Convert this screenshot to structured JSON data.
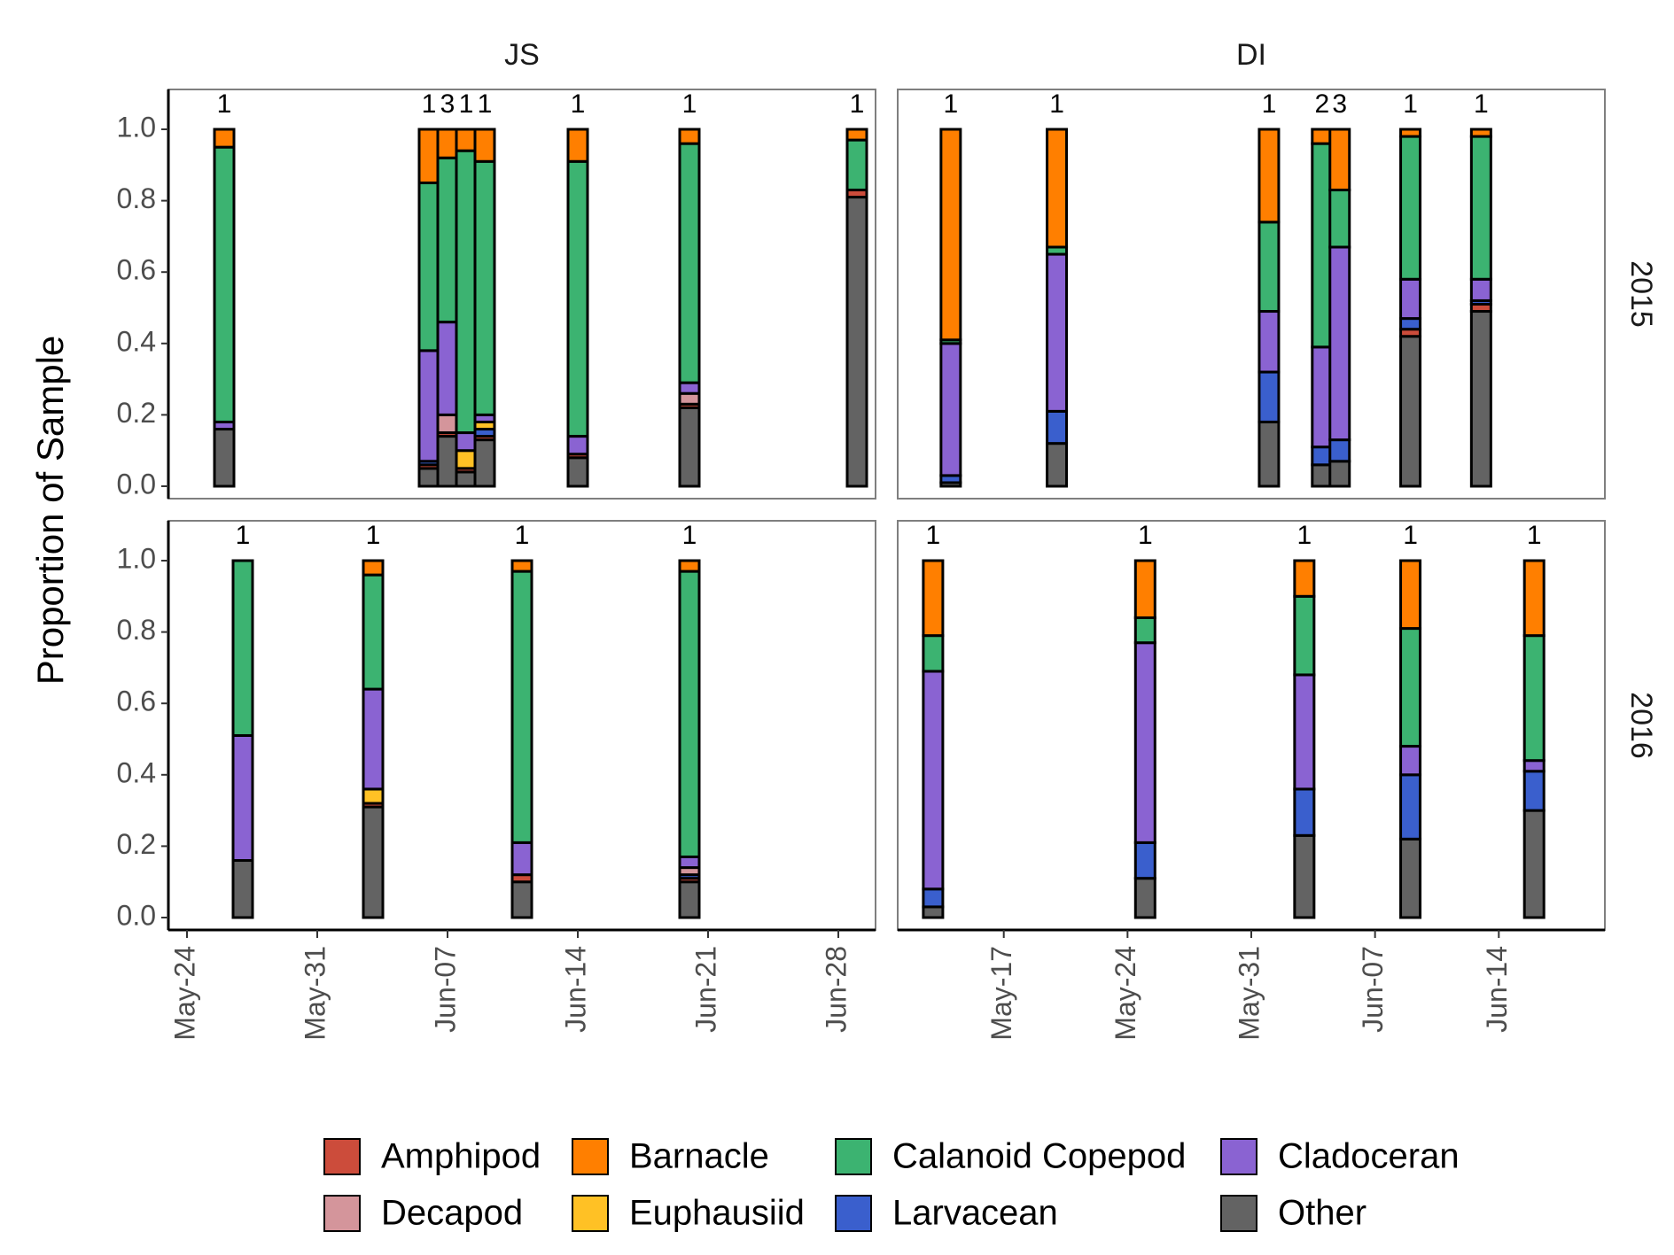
{
  "chart_data": {
    "type": "bar",
    "stacked": true,
    "facet_columns": [
      "JS",
      "DI"
    ],
    "facet_rows": [
      "2015",
      "2016"
    ],
    "ylabel": "Proportion of Sample",
    "ylim": [
      0,
      1.08
    ],
    "yticks": [
      "0.0",
      "0.2",
      "0.4",
      "0.6",
      "0.8",
      "1.0"
    ],
    "x_axis": {
      "JS": {
        "range": [
          "2015-05-23",
          "2015-06-30"
        ],
        "ticks": [
          {
            "label": "May-24",
            "date": "2015-05-24"
          },
          {
            "label": "May-31",
            "date": "2015-05-31"
          },
          {
            "label": "Jun-07",
            "date": "2015-06-07"
          },
          {
            "label": "Jun-14",
            "date": "2015-06-14"
          },
          {
            "label": "Jun-21",
            "date": "2015-06-21"
          },
          {
            "label": "Jun-28",
            "date": "2015-06-28"
          }
        ]
      },
      "DI": {
        "range": [
          "2015-05-11",
          "2015-06-20"
        ],
        "ticks": [
          {
            "label": "May-17",
            "date": "2015-05-17"
          },
          {
            "label": "May-24",
            "date": "2015-05-24"
          },
          {
            "label": "May-31",
            "date": "2015-05-31"
          },
          {
            "label": "Jun-07",
            "date": "2015-06-07"
          },
          {
            "label": "Jun-14",
            "date": "2015-06-14"
          }
        ]
      }
    },
    "categories": [
      "Amphipod",
      "Barnacle",
      "Calanoid Copepod",
      "Cladoceran",
      "Decapod",
      "Euphausiid",
      "Larvacean",
      "Other"
    ],
    "colors": {
      "Amphipod": "#cc4c3b",
      "Barnacle": "#ff7f00",
      "Calanoid Copepod": "#3cb371",
      "Cladoceran": "#8a63d2",
      "Decapod": "#d4959b",
      "Euphausiid": "#ffc125",
      "Larvacean": "#3a5fcd",
      "Other": "#636363"
    },
    "stack_order": [
      "Other",
      "Amphipod",
      "Larvacean",
      "Decapod",
      "Euphausiid",
      "Cladoceran",
      "Calanoid Copepod",
      "Barnacle"
    ],
    "panels": [
      {
        "site": "JS",
        "year": "2015",
        "bars": [
          {
            "date": "2015-05-26",
            "label": "1",
            "values": {
              "Other": 0.16,
              "Cladoceran": 0.02,
              "Calanoid Copepod": 0.77,
              "Barnacle": 0.05
            }
          },
          {
            "date": "2015-06-06",
            "label": "1",
            "values": {
              "Other": 0.05,
              "Amphipod": 0.01,
              "Larvacean": 0.01,
              "Cladoceran": 0.31,
              "Calanoid Copepod": 0.47,
              "Barnacle": 0.15
            }
          },
          {
            "date": "2015-06-07",
            "label": "3",
            "values": {
              "Other": 0.14,
              "Amphipod": 0.01,
              "Decapod": 0.05,
              "Cladoceran": 0.26,
              "Calanoid Copepod": 0.46,
              "Barnacle": 0.08
            }
          },
          {
            "date": "2015-06-08",
            "label": "1",
            "values": {
              "Other": 0.04,
              "Amphipod": 0.01,
              "Euphausiid": 0.05,
              "Cladoceran": 0.05,
              "Calanoid Copepod": 0.79,
              "Barnacle": 0.06
            }
          },
          {
            "date": "2015-06-09",
            "label": "1",
            "values": {
              "Other": 0.13,
              "Amphipod": 0.01,
              "Larvacean": 0.02,
              "Euphausiid": 0.02,
              "Cladoceran": 0.02,
              "Calanoid Copepod": 0.71,
              "Barnacle": 0.09
            }
          },
          {
            "date": "2015-06-14",
            "label": "1",
            "values": {
              "Other": 0.08,
              "Amphipod": 0.01,
              "Cladoceran": 0.05,
              "Calanoid Copepod": 0.77,
              "Barnacle": 0.09
            }
          },
          {
            "date": "2015-06-20",
            "label": "1",
            "values": {
              "Other": 0.22,
              "Amphipod": 0.01,
              "Decapod": 0.03,
              "Cladoceran": 0.03,
              "Calanoid Copepod": 0.67,
              "Barnacle": 0.04
            }
          },
          {
            "date": "2015-06-29",
            "label": "1",
            "values": {
              "Other": 0.81,
              "Amphipod": 0.02,
              "Calanoid Copepod": 0.14,
              "Barnacle": 0.03
            }
          }
        ]
      },
      {
        "site": "DI",
        "year": "2015",
        "bars": [
          {
            "date": "2015-05-14",
            "label": "1",
            "values": {
              "Other": 0.01,
              "Larvacean": 0.02,
              "Cladoceran": 0.37,
              "Calanoid Copepod": 0.01,
              "Barnacle": 0.59
            }
          },
          {
            "date": "2015-05-20",
            "label": "1",
            "values": {
              "Other": 0.12,
              "Larvacean": 0.09,
              "Cladoceran": 0.44,
              "Calanoid Copepod": 0.02,
              "Barnacle": 0.33
            }
          },
          {
            "date": "2015-06-01",
            "label": "1",
            "values": {
              "Other": 0.18,
              "Larvacean": 0.14,
              "Cladoceran": 0.17,
              "Calanoid Copepod": 0.25,
              "Barnacle": 0.26
            }
          },
          {
            "date": "2015-06-04",
            "label": "2",
            "values": {
              "Other": 0.06,
              "Larvacean": 0.05,
              "Cladoceran": 0.28,
              "Calanoid Copepod": 0.57,
              "Barnacle": 0.04
            }
          },
          {
            "date": "2015-06-05",
            "label": "3",
            "values": {
              "Other": 0.07,
              "Larvacean": 0.06,
              "Cladoceran": 0.54,
              "Calanoid Copepod": 0.16,
              "Barnacle": 0.17
            }
          },
          {
            "date": "2015-06-09",
            "label": "1",
            "values": {
              "Other": 0.42,
              "Amphipod": 0.02,
              "Larvacean": 0.03,
              "Cladoceran": 0.11,
              "Calanoid Copepod": 0.4,
              "Barnacle": 0.02
            }
          },
          {
            "date": "2015-06-13",
            "label": "1",
            "values": {
              "Other": 0.49,
              "Amphipod": 0.02,
              "Larvacean": 0.01,
              "Cladoceran": 0.06,
              "Calanoid Copepod": 0.4,
              "Barnacle": 0.02
            }
          }
        ]
      },
      {
        "site": "JS",
        "year": "2016",
        "bars": [
          {
            "date": "2015-05-27",
            "label": "1",
            "values": {
              "Other": 0.16,
              "Cladoceran": 0.35,
              "Calanoid Copepod": 0.49
            }
          },
          {
            "date": "2015-06-03",
            "label": "1",
            "values": {
              "Other": 0.31,
              "Amphipod": 0.01,
              "Euphausiid": 0.04,
              "Cladoceran": 0.28,
              "Calanoid Copepod": 0.32,
              "Barnacle": 0.04
            }
          },
          {
            "date": "2015-06-11",
            "label": "1",
            "values": {
              "Other": 0.1,
              "Amphipod": 0.02,
              "Cladoceran": 0.09,
              "Calanoid Copepod": 0.76,
              "Barnacle": 0.03
            }
          },
          {
            "date": "2015-06-20",
            "label": "1",
            "values": {
              "Other": 0.1,
              "Amphipod": 0.01,
              "Larvacean": 0.01,
              "Decapod": 0.02,
              "Cladoceran": 0.03,
              "Calanoid Copepod": 0.8,
              "Barnacle": 0.03
            }
          }
        ]
      },
      {
        "site": "DI",
        "year": "2016",
        "bars": [
          {
            "date": "2015-05-13",
            "label": "1",
            "values": {
              "Other": 0.03,
              "Larvacean": 0.05,
              "Cladoceran": 0.61,
              "Calanoid Copepod": 0.1,
              "Barnacle": 0.21
            }
          },
          {
            "date": "2015-05-25",
            "label": "1",
            "values": {
              "Other": 0.11,
              "Larvacean": 0.1,
              "Cladoceran": 0.56,
              "Calanoid Copepod": 0.07,
              "Barnacle": 0.16
            }
          },
          {
            "date": "2015-06-03",
            "label": "1",
            "values": {
              "Other": 0.23,
              "Larvacean": 0.13,
              "Cladoceran": 0.32,
              "Calanoid Copepod": 0.22,
              "Barnacle": 0.1
            }
          },
          {
            "date": "2015-06-09",
            "label": "1",
            "values": {
              "Other": 0.22,
              "Larvacean": 0.18,
              "Cladoceran": 0.08,
              "Calanoid Copepod": 0.33,
              "Barnacle": 0.19
            }
          },
          {
            "date": "2015-06-16",
            "label": "1",
            "values": {
              "Other": 0.3,
              "Larvacean": 0.11,
              "Cladoceran": 0.03,
              "Calanoid Copepod": 0.35,
              "Barnacle": 0.21
            }
          }
        ]
      }
    ],
    "legend": {
      "position": "bottom",
      "items": [
        "Amphipod",
        "Barnacle",
        "Calanoid Copepod",
        "Cladoceran",
        "Decapod",
        "Euphausiid",
        "Larvacean",
        "Other"
      ]
    },
    "grid": false
  }
}
